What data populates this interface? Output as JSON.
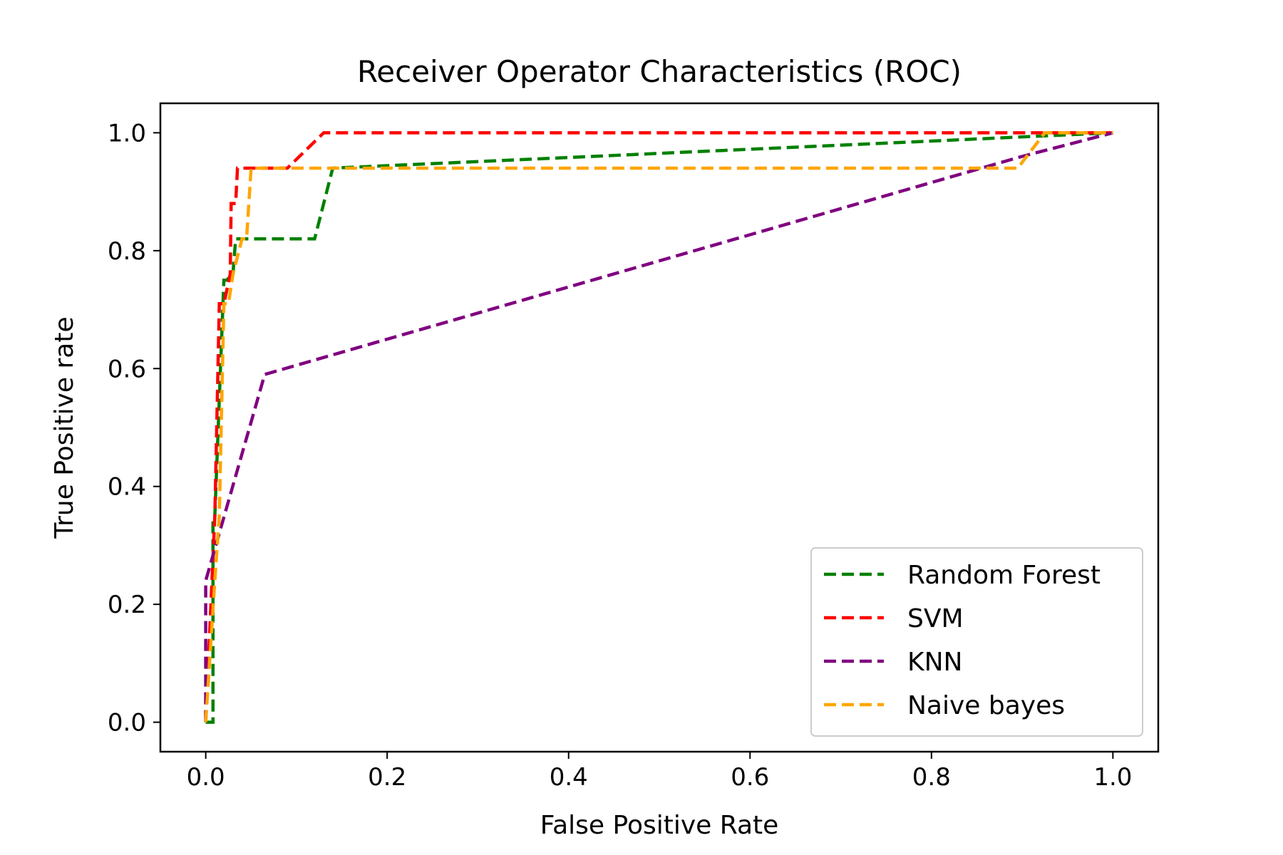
{
  "chart_data": {
    "type": "line",
    "title": "Receiver Operator Characteristics (ROC)",
    "xlabel": "False Positive Rate",
    "ylabel": "True Positive rate",
    "xlim": [
      -0.05,
      1.05
    ],
    "ylim": [
      -0.05,
      1.05
    ],
    "xticks": [
      0.0,
      0.2,
      0.4,
      0.6,
      0.8,
      1.0
    ],
    "yticks": [
      0.0,
      0.2,
      0.4,
      0.6,
      0.8,
      1.0
    ],
    "xtick_labels": [
      "0.0",
      "0.2",
      "0.4",
      "0.6",
      "0.8",
      "1.0"
    ],
    "ytick_labels": [
      "0.0",
      "0.2",
      "0.4",
      "0.6",
      "0.8",
      "1.0"
    ],
    "grid": false,
    "legend_position": "lower-right",
    "line_style": "dashed",
    "series": [
      {
        "name": "Random Forest",
        "color": "#008000",
        "x": [
          0.0,
          0.008,
          0.008,
          0.01,
          0.02,
          0.023,
          0.03,
          0.033,
          0.12,
          0.14,
          1.0
        ],
        "y": [
          0.0,
          0.0,
          0.35,
          0.35,
          0.75,
          0.75,
          0.76,
          0.82,
          0.82,
          0.94,
          1.0
        ]
      },
      {
        "name": "SVM",
        "color": "#ff0000",
        "x": [
          0.0,
          0.01,
          0.015,
          0.02,
          0.027,
          0.028,
          0.033,
          0.035,
          0.09,
          0.13,
          1.0
        ],
        "y": [
          0.0,
          0.35,
          0.71,
          0.71,
          0.76,
          0.88,
          0.88,
          0.94,
          0.94,
          1.0,
          1.0
        ]
      },
      {
        "name": "KNN",
        "color": "#800080",
        "x": [
          0.0,
          0.0,
          0.065,
          0.9,
          1.0
        ],
        "y": [
          0.0,
          0.24,
          0.59,
          0.96,
          1.0
        ]
      },
      {
        "name": "Naive bayes",
        "color": "#ffa500",
        "x": [
          0.0,
          0.01,
          0.015,
          0.02,
          0.025,
          0.03,
          0.04,
          0.045,
          0.05,
          0.895,
          0.925,
          1.0
        ],
        "y": [
          0.0,
          0.24,
          0.35,
          0.71,
          0.71,
          0.76,
          0.82,
          0.82,
          0.94,
          0.94,
          1.0,
          1.0
        ]
      }
    ]
  }
}
